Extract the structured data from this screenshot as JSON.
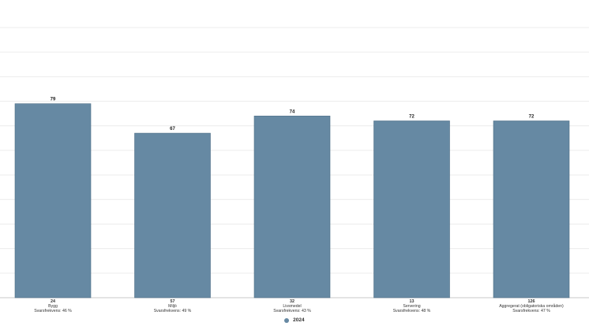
{
  "chart_data": {
    "type": "bar",
    "categories": [
      {
        "count": "24",
        "name": "Bygg",
        "response": "Svarsfrekvens: 46 %"
      },
      {
        "count": "57",
        "name": "Miljö",
        "response": "Svarsfrekvens: 49 %"
      },
      {
        "count": "32",
        "name": "Livsmedel",
        "response": "Svarsfrekvens: 43 %"
      },
      {
        "count": "13",
        "name": "Servering",
        "response": "Svarsfrekvens: 48 %"
      },
      {
        "count": "126",
        "name": "Aggregerat (obligatoriska områden)",
        "response": "Svarsfrekvens: 47 %"
      }
    ],
    "series": [
      {
        "name": "2024",
        "values": [
          79,
          67,
          74,
          72,
          72
        ],
        "color": "#6689a3"
      }
    ],
    "ylim": [
      0,
      110
    ],
    "grid": true,
    "legend": "bottom-center"
  }
}
